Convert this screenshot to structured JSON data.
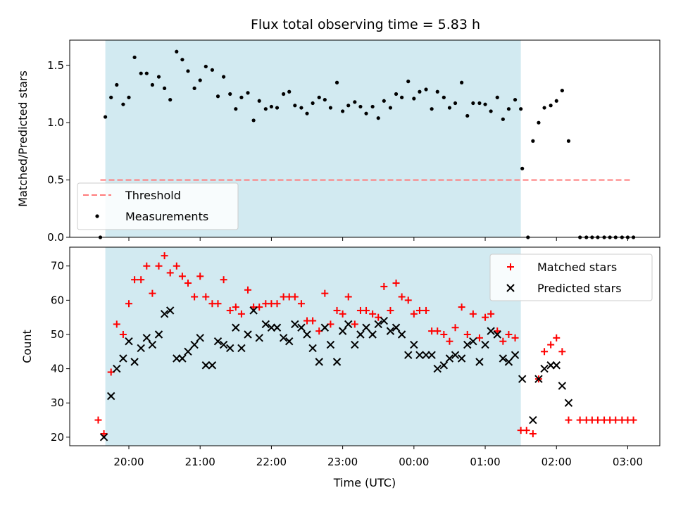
{
  "title": "Flux total observing time = 5.83 h",
  "colors": {
    "shade": "#add8e6",
    "threshold": "#ff7b7b",
    "measurement": "#000000",
    "matched": "#ff0000",
    "predicted": "#000000"
  },
  "chart_data": [
    {
      "type": "scatter",
      "ylabel": "Matched/Predicted stars",
      "ylim": [
        0,
        1.72
      ],
      "yticks": [
        "0.0",
        "0.5",
        "1.0",
        "1.5"
      ],
      "x_unit": "hours since 00:00 UTC of the first day (e.g. 19.67 = 19:40)",
      "xlim": [
        19.17,
        27.45
      ],
      "shaded_interval": [
        19.67,
        25.5
      ],
      "threshold": 0.5,
      "threshold_x_range": [
        19.6,
        27.05
      ],
      "legend": {
        "position": "lower-left",
        "entries": [
          "Threshold",
          "Measurements"
        ]
      },
      "series": [
        {
          "name": "Measurements",
          "points": [
            [
              19.6,
              0.0
            ],
            [
              19.67,
              1.05
            ],
            [
              19.75,
              1.22
            ],
            [
              19.83,
              1.33
            ],
            [
              19.92,
              1.16
            ],
            [
              20.0,
              1.22
            ],
            [
              20.08,
              1.57
            ],
            [
              20.17,
              1.43
            ],
            [
              20.25,
              1.43
            ],
            [
              20.33,
              1.33
            ],
            [
              20.42,
              1.4
            ],
            [
              20.5,
              1.3
            ],
            [
              20.58,
              1.2
            ],
            [
              20.67,
              1.62
            ],
            [
              20.75,
              1.55
            ],
            [
              20.83,
              1.45
            ],
            [
              20.92,
              1.3
            ],
            [
              21.0,
              1.37
            ],
            [
              21.08,
              1.49
            ],
            [
              21.17,
              1.46
            ],
            [
              21.25,
              1.23
            ],
            [
              21.33,
              1.4
            ],
            [
              21.42,
              1.25
            ],
            [
              21.5,
              1.12
            ],
            [
              21.58,
              1.22
            ],
            [
              21.67,
              1.26
            ],
            [
              21.75,
              1.02
            ],
            [
              21.83,
              1.19
            ],
            [
              21.92,
              1.12
            ],
            [
              22.0,
              1.14
            ],
            [
              22.08,
              1.13
            ],
            [
              22.17,
              1.25
            ],
            [
              22.25,
              1.27
            ],
            [
              22.33,
              1.15
            ],
            [
              22.42,
              1.13
            ],
            [
              22.5,
              1.08
            ],
            [
              22.58,
              1.17
            ],
            [
              22.67,
              1.22
            ],
            [
              22.75,
              1.2
            ],
            [
              22.83,
              1.13
            ],
            [
              22.92,
              1.35
            ],
            [
              23.0,
              1.1
            ],
            [
              23.08,
              1.15
            ],
            [
              23.17,
              1.18
            ],
            [
              23.25,
              1.14
            ],
            [
              23.33,
              1.08
            ],
            [
              23.42,
              1.14
            ],
            [
              23.5,
              1.04
            ],
            [
              23.58,
              1.19
            ],
            [
              23.67,
              1.13
            ],
            [
              23.75,
              1.25
            ],
            [
              23.83,
              1.22
            ],
            [
              23.92,
              1.36
            ],
            [
              24.0,
              1.21
            ],
            [
              24.08,
              1.27
            ],
            [
              24.17,
              1.29
            ],
            [
              24.25,
              1.12
            ],
            [
              24.33,
              1.27
            ],
            [
              24.42,
              1.22
            ],
            [
              24.5,
              1.13
            ],
            [
              24.58,
              1.17
            ],
            [
              24.67,
              1.35
            ],
            [
              24.75,
              1.06
            ],
            [
              24.83,
              1.17
            ],
            [
              24.92,
              1.17
            ],
            [
              25.0,
              1.16
            ],
            [
              25.08,
              1.1
            ],
            [
              25.17,
              1.22
            ],
            [
              25.25,
              1.03
            ],
            [
              25.33,
              1.12
            ],
            [
              25.42,
              1.2
            ],
            [
              25.5,
              1.12
            ],
            [
              25.52,
              0.6
            ],
            [
              25.6,
              0.0
            ],
            [
              25.67,
              0.84
            ],
            [
              25.75,
              1.0
            ],
            [
              25.83,
              1.13
            ],
            [
              25.92,
              1.15
            ],
            [
              26.0,
              1.19
            ],
            [
              26.08,
              1.28
            ],
            [
              26.17,
              0.84
            ],
            [
              26.33,
              0.0
            ],
            [
              26.42,
              0.0
            ],
            [
              26.5,
              0.0
            ],
            [
              26.58,
              0.0
            ],
            [
              26.67,
              0.0
            ],
            [
              26.75,
              0.0
            ],
            [
              26.83,
              0.0
            ],
            [
              26.92,
              0.0
            ],
            [
              27.0,
              0.0
            ],
            [
              27.08,
              0.0
            ]
          ]
        }
      ]
    },
    {
      "type": "scatter",
      "ylabel": "Count",
      "xlabel": "Time (UTC)",
      "ylim": [
        17.5,
        75.5
      ],
      "yticks": [
        "20",
        "30",
        "40",
        "50",
        "60",
        "70"
      ],
      "xlim": [
        19.17,
        27.45
      ],
      "xticks": [
        {
          "x": 20.0,
          "label": "20:00"
        },
        {
          "x": 21.0,
          "label": "21:00"
        },
        {
          "x": 22.0,
          "label": "22:00"
        },
        {
          "x": 23.0,
          "label": "23:00"
        },
        {
          "x": 24.0,
          "label": "00:00"
        },
        {
          "x": 25.0,
          "label": "01:00"
        },
        {
          "x": 26.0,
          "label": "02:00"
        },
        {
          "x": 27.0,
          "label": "03:00"
        }
      ],
      "shaded_interval": [
        19.67,
        25.5
      ],
      "legend": {
        "position": "upper-right",
        "entries": [
          "Matched stars",
          "Predicted stars"
        ]
      },
      "series": [
        {
          "name": "Matched stars",
          "marker": "plus",
          "points": [
            [
              19.57,
              25
            ],
            [
              19.65,
              21
            ],
            [
              19.75,
              39
            ],
            [
              19.83,
              53
            ],
            [
              19.92,
              50
            ],
            [
              20.0,
              59
            ],
            [
              20.08,
              66
            ],
            [
              20.17,
              66
            ],
            [
              20.25,
              70
            ],
            [
              20.33,
              62
            ],
            [
              20.42,
              70
            ],
            [
              20.5,
              73
            ],
            [
              20.58,
              68
            ],
            [
              20.67,
              70
            ],
            [
              20.75,
              67
            ],
            [
              20.83,
              65
            ],
            [
              20.92,
              61
            ],
            [
              21.0,
              67
            ],
            [
              21.08,
              61
            ],
            [
              21.17,
              59
            ],
            [
              21.25,
              59
            ],
            [
              21.33,
              66
            ],
            [
              21.42,
              57
            ],
            [
              21.5,
              58
            ],
            [
              21.58,
              56
            ],
            [
              21.67,
              63
            ],
            [
              21.75,
              58
            ],
            [
              21.83,
              58
            ],
            [
              21.92,
              59
            ],
            [
              22.0,
              59
            ],
            [
              22.08,
              59
            ],
            [
              22.17,
              61
            ],
            [
              22.25,
              61
            ],
            [
              22.33,
              61
            ],
            [
              22.42,
              59
            ],
            [
              22.5,
              54
            ],
            [
              22.58,
              54
            ],
            [
              22.67,
              51
            ],
            [
              22.75,
              62
            ],
            [
              22.83,
              53
            ],
            [
              22.92,
              57
            ],
            [
              23.0,
              56
            ],
            [
              23.08,
              61
            ],
            [
              23.17,
              53
            ],
            [
              23.25,
              57
            ],
            [
              23.33,
              57
            ],
            [
              23.42,
              56
            ],
            [
              23.5,
              55
            ],
            [
              23.58,
              64
            ],
            [
              23.67,
              57
            ],
            [
              23.75,
              65
            ],
            [
              23.83,
              61
            ],
            [
              23.92,
              60
            ],
            [
              24.0,
              56
            ],
            [
              24.08,
              57
            ],
            [
              24.17,
              57
            ],
            [
              24.25,
              51
            ],
            [
              24.33,
              51
            ],
            [
              24.42,
              50
            ],
            [
              24.5,
              48
            ],
            [
              24.58,
              52
            ],
            [
              24.67,
              58
            ],
            [
              24.75,
              50
            ],
            [
              24.83,
              56
            ],
            [
              24.92,
              49
            ],
            [
              25.0,
              55
            ],
            [
              25.08,
              56
            ],
            [
              25.17,
              51
            ],
            [
              25.25,
              48
            ],
            [
              25.33,
              50
            ],
            [
              25.42,
              49
            ],
            [
              25.5,
              22
            ],
            [
              25.58,
              22
            ],
            [
              25.67,
              21
            ],
            [
              25.75,
              37
            ],
            [
              25.83,
              45
            ],
            [
              25.92,
              47
            ],
            [
              26.0,
              49
            ],
            [
              26.08,
              45
            ],
            [
              26.17,
              25
            ],
            [
              26.33,
              25
            ],
            [
              26.42,
              25
            ],
            [
              26.5,
              25
            ],
            [
              26.58,
              25
            ],
            [
              26.67,
              25
            ],
            [
              26.75,
              25
            ],
            [
              26.83,
              25
            ],
            [
              26.92,
              25
            ],
            [
              27.0,
              25
            ],
            [
              27.08,
              25
            ]
          ]
        },
        {
          "name": "Predicted stars",
          "marker": "x",
          "points": [
            [
              19.65,
              20
            ],
            [
              19.75,
              32
            ],
            [
              19.83,
              40
            ],
            [
              19.92,
              43
            ],
            [
              20.0,
              48
            ],
            [
              20.08,
              42
            ],
            [
              20.17,
              46
            ],
            [
              20.25,
              49
            ],
            [
              20.33,
              47
            ],
            [
              20.42,
              50
            ],
            [
              20.5,
              56
            ],
            [
              20.58,
              57
            ],
            [
              20.67,
              43
            ],
            [
              20.75,
              43
            ],
            [
              20.83,
              45
            ],
            [
              20.92,
              47
            ],
            [
              21.0,
              49
            ],
            [
              21.08,
              41
            ],
            [
              21.17,
              41
            ],
            [
              21.25,
              48
            ],
            [
              21.33,
              47
            ],
            [
              21.42,
              46
            ],
            [
              21.5,
              52
            ],
            [
              21.58,
              46
            ],
            [
              21.67,
              50
            ],
            [
              21.75,
              57
            ],
            [
              21.83,
              49
            ],
            [
              21.92,
              53
            ],
            [
              22.0,
              52
            ],
            [
              22.08,
              52
            ],
            [
              22.17,
              49
            ],
            [
              22.25,
              48
            ],
            [
              22.33,
              53
            ],
            [
              22.42,
              52
            ],
            [
              22.5,
              50
            ],
            [
              22.58,
              46
            ],
            [
              22.67,
              42
            ],
            [
              22.75,
              52
            ],
            [
              22.83,
              47
            ],
            [
              22.92,
              42
            ],
            [
              23.0,
              51
            ],
            [
              23.08,
              53
            ],
            [
              23.17,
              47
            ],
            [
              23.25,
              50
            ],
            [
              23.33,
              52
            ],
            [
              23.42,
              50
            ],
            [
              23.5,
              53
            ],
            [
              23.58,
              54
            ],
            [
              23.67,
              51
            ],
            [
              23.75,
              52
            ],
            [
              23.83,
              50
            ],
            [
              23.92,
              44
            ],
            [
              24.0,
              47
            ],
            [
              24.08,
              44
            ],
            [
              24.17,
              44
            ],
            [
              24.25,
              44
            ],
            [
              24.33,
              40
            ],
            [
              24.42,
              41
            ],
            [
              24.5,
              43
            ],
            [
              24.58,
              44
            ],
            [
              24.67,
              43
            ],
            [
              24.75,
              47
            ],
            [
              24.83,
              48
            ],
            [
              24.92,
              42
            ],
            [
              25.0,
              47
            ],
            [
              25.08,
              51
            ],
            [
              25.17,
              50
            ],
            [
              25.25,
              43
            ],
            [
              25.33,
              42
            ],
            [
              25.42,
              44
            ],
            [
              25.52,
              37
            ],
            [
              25.67,
              25
            ],
            [
              25.75,
              37
            ],
            [
              25.83,
              40
            ],
            [
              25.92,
              41
            ],
            [
              26.0,
              41
            ],
            [
              26.08,
              35
            ],
            [
              26.17,
              30
            ]
          ]
        }
      ]
    }
  ]
}
